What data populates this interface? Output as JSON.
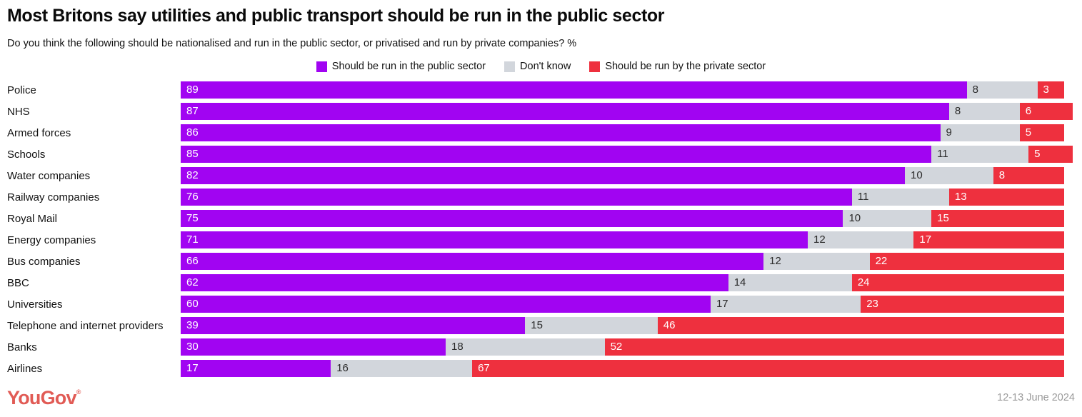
{
  "header": {
    "title": "Most Britons say utilities and public transport should be run in the public sector",
    "subtitle": "Do you think the following should be nationalised and run in the public sector, or privatised and run by private companies? %"
  },
  "chart_data": {
    "type": "bar",
    "orientation": "horizontal",
    "stacked": true,
    "grid": false,
    "legend_position": "top-center",
    "value_unit": "%",
    "xmax": 101,
    "categories": [
      "Police",
      "NHS",
      "Armed forces",
      "Schools",
      "Water companies",
      "Railway companies",
      "Royal Mail",
      "Energy companies",
      "Bus companies",
      "BBC",
      "Universities",
      "Telephone and internet providers",
      "Banks",
      "Airlines"
    ],
    "series": [
      {
        "name": "Should be run in the public sector",
        "color": "#a104f2",
        "label_color": "#ffffff",
        "values": [
          89,
          87,
          86,
          85,
          82,
          76,
          75,
          71,
          66,
          62,
          60,
          39,
          30,
          17
        ]
      },
      {
        "name": "Don't know",
        "color": "#d2d6dc",
        "label_color": "#2b2b2b",
        "values": [
          8,
          8,
          9,
          11,
          10,
          11,
          10,
          12,
          12,
          14,
          17,
          15,
          18,
          16
        ]
      },
      {
        "name": "Should be run by the private sector",
        "color": "#ee303e",
        "label_color": "#ffffff",
        "values": [
          3,
          6,
          5,
          5,
          8,
          13,
          15,
          17,
          22,
          24,
          23,
          46,
          52,
          67
        ]
      }
    ]
  },
  "footer": {
    "logo_text": "YouGov",
    "logo_registered_mark": "®",
    "logo_color": "#e15b55",
    "date": "12-13 June 2024"
  }
}
